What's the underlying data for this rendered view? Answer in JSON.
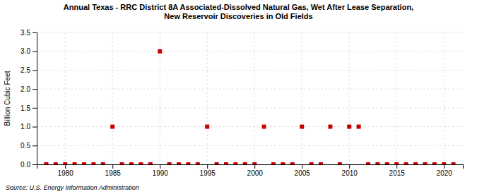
{
  "chart_data": {
    "type": "scatter",
    "title": "Annual Texas - RRC District 8A Associated-Dissolved Natural Gas, Wet After Lease Separation,\nNew Reservoir Discoveries in Old Fields",
    "ylabel": "Billion Cubic Feet",
    "annotations": [
      "Source: U.S. Energy Information Administration"
    ],
    "x": [
      1978,
      1979,
      1980,
      1981,
      1982,
      1983,
      1984,
      1985,
      1986,
      1987,
      1988,
      1989,
      1990,
      1991,
      1992,
      1993,
      1994,
      1995,
      1996,
      1997,
      1998,
      1999,
      2000,
      2001,
      2002,
      2003,
      2004,
      2005,
      2006,
      2007,
      2008,
      2009,
      2010,
      2011,
      2012,
      2013,
      2014,
      2015,
      2016,
      2017,
      2018,
      2019,
      2020,
      2021
    ],
    "values": [
      0.0,
      0.0,
      0.0,
      0.0,
      0.0,
      0.0,
      0.0,
      1.0,
      0.0,
      0.0,
      0.0,
      0.0,
      3.0,
      0.0,
      0.0,
      0.0,
      0.0,
      1.0,
      0.0,
      0.0,
      0.0,
      0.0,
      0.0,
      1.0,
      0.0,
      0.0,
      0.0,
      1.0,
      0.0,
      0.0,
      1.0,
      0.0,
      1.0,
      1.0,
      0.0,
      0.0,
      0.0,
      0.0,
      0.0,
      0.0,
      0.0,
      0.0,
      0.0,
      0.0
    ],
    "color": "#cc0000",
    "marker": "square",
    "xlim": [
      1977,
      2022
    ],
    "ylim": [
      0,
      3.5
    ],
    "xticks": [
      1980,
      1985,
      1990,
      1995,
      2000,
      2005,
      2010,
      2015,
      2020
    ],
    "yticks": [
      {
        "value": 0,
        "label": "0.0"
      },
      0.5,
      {
        "value": 1,
        "label": "1.0"
      },
      1.5,
      {
        "value": 2,
        "label": "2.0"
      },
      2.5,
      {
        "value": 3,
        "label": "3.0"
      },
      3.5
    ],
    "grid": true
  }
}
